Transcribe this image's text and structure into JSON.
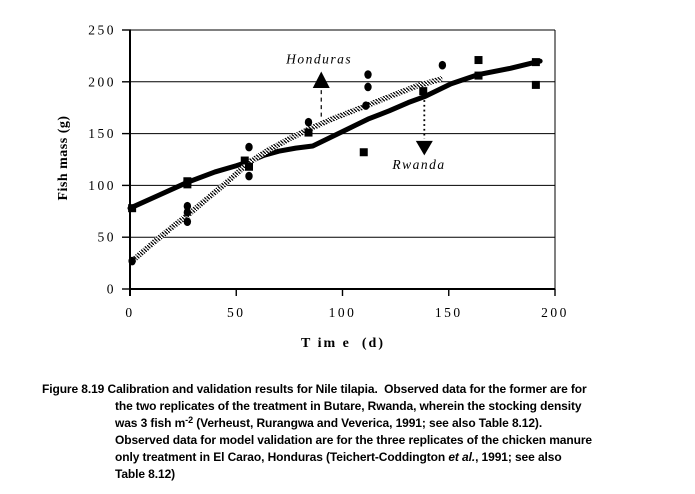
{
  "chart_data": {
    "type": "line+scatter",
    "title": "",
    "xlabel": "T im e  (d)",
    "ylabel": "Fish mass (g)",
    "xlim": [
      0,
      200
    ],
    "ylim": [
      0,
      250
    ],
    "x_ticks": [
      0,
      50,
      100,
      150,
      200
    ],
    "y_ticks": [
      0,
      50,
      100,
      150,
      200,
      250
    ],
    "grid": "horizontal-only",
    "legend": "none",
    "ink_color": "#000000",
    "background_color": "#ffffff",
    "series": [
      {
        "name": "Rwanda calibration model curve",
        "type": "line",
        "style": "thick-solid",
        "points": [
          [
            0,
            78
          ],
          [
            13,
            90
          ],
          [
            27,
            103
          ],
          [
            40,
            113
          ],
          [
            50,
            119
          ],
          [
            56,
            123
          ],
          [
            63,
            129
          ],
          [
            70,
            133
          ],
          [
            78,
            136
          ],
          [
            86,
            138
          ],
          [
            94,
            146
          ],
          [
            102,
            154
          ],
          [
            112,
            164
          ],
          [
            122,
            172
          ],
          [
            131,
            180
          ],
          [
            139,
            186
          ],
          [
            151,
            198
          ],
          [
            164,
            207
          ],
          [
            179,
            213
          ],
          [
            193,
            220
          ]
        ]
      },
      {
        "name": "Honduras validation model curve",
        "type": "line",
        "style": "hatched-band",
        "points": [
          [
            1,
            27
          ],
          [
            10,
            43
          ],
          [
            20,
            60
          ],
          [
            27,
            71
          ],
          [
            35,
            85
          ],
          [
            45,
            102
          ],
          [
            56,
            122
          ],
          [
            65,
            134
          ],
          [
            75,
            145
          ],
          [
            85,
            155
          ],
          [
            95,
            164
          ],
          [
            105,
            172
          ],
          [
            115,
            180
          ],
          [
            125,
            188
          ],
          [
            135,
            196
          ],
          [
            147,
            203
          ]
        ]
      },
      {
        "name": "Rwanda observed (Butare, two replicates)",
        "type": "scatter",
        "marker": "square",
        "points": [
          [
            1,
            78
          ],
          [
            27,
            104
          ],
          [
            27,
            101
          ],
          [
            54,
            124
          ],
          [
            56,
            118
          ],
          [
            84,
            151
          ],
          [
            110,
            132
          ],
          [
            138,
            191
          ],
          [
            164,
            221
          ],
          [
            164,
            206
          ],
          [
            191,
            219
          ],
          [
            191,
            197
          ]
        ]
      },
      {
        "name": "Honduras observed (El Carao, three replicates)",
        "type": "scatter",
        "marker": "circle",
        "points": [
          [
            1,
            27
          ],
          [
            27,
            80
          ],
          [
            27,
            74
          ],
          [
            27,
            65
          ],
          [
            56,
            137
          ],
          [
            56,
            109
          ],
          [
            84,
            161
          ],
          [
            111,
            177
          ],
          [
            112,
            195
          ],
          [
            112,
            207
          ],
          [
            147,
            216
          ]
        ]
      }
    ],
    "annotations": [
      {
        "label": "Honduras",
        "label_pos": [
          89,
          222
        ],
        "triangle": {
          "dir": "up",
          "cx": 90,
          "tip_y": 210,
          "base_y": 194,
          "half_w": 4
        },
        "connector": {
          "x": 90,
          "y_from": 192,
          "y_to": 164,
          "dash": "dashed"
        }
      },
      {
        "label": "Rwanda",
        "label_pos": [
          136,
          120
        ],
        "triangle": {
          "dir": "down",
          "cx": 138.5,
          "tip_y": 129,
          "base_y": 143,
          "half_w": 4
        },
        "connector": {
          "x": 138.5,
          "y_from": 187,
          "y_to": 145,
          "dash": "dotted"
        }
      }
    ]
  },
  "caption": {
    "lines": [
      [
        {
          "t": "Figure 8.19 ",
          "s": "n"
        },
        {
          "t": "Calibration and validation results for Nile tilapia.  Observed data for the former are for",
          "s": "n"
        }
      ],
      [
        {
          "t": "the two replicates of the treatment in Butare, Rwanda, wherein the stocking density",
          "s": "n"
        }
      ],
      [
        {
          "t": "was 3 fish m",
          "s": "n"
        },
        {
          "t": "-2",
          "s": "sup"
        },
        {
          "t": " (Verheust, Rurangwa and Veverica, 1991; see also Table 8.12).",
          "s": "n"
        }
      ],
      [
        {
          "t": "Observed data for model validation are for the three replicates of the chicken manure",
          "s": "n"
        }
      ],
      [
        {
          "t": "only treatment in El Carao, Honduras (Teichert-Coddington ",
          "s": "n"
        },
        {
          "t": "et al.",
          "s": "i"
        },
        {
          "t": ", 1991; see also",
          "s": "n"
        }
      ],
      [
        {
          "t": "Table 8.12)",
          "s": "n"
        }
      ]
    ]
  }
}
